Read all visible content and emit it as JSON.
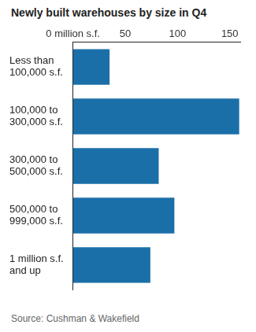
{
  "chart_data": {
    "type": "bar",
    "orientation": "horizontal",
    "title": "Newly built warehouses by size in Q4",
    "source": "Source: Cushman & Wakefield",
    "categories": [
      "Less than 100,000 s.f.",
      "100,000 to 300,000 s.f.",
      "300,000 to 500,000 s.f.",
      "500,000 to 999,000 s.f.",
      "1 million s.f. and up"
    ],
    "values": [
      35,
      159,
      82,
      97,
      74
    ],
    "color": "#1b6fa8",
    "xlim": [
      0,
      160
    ],
    "xticks": [
      {
        "value": 0,
        "label": "0 million s.f."
      },
      50,
      100,
      150
    ],
    "grid": false
  }
}
